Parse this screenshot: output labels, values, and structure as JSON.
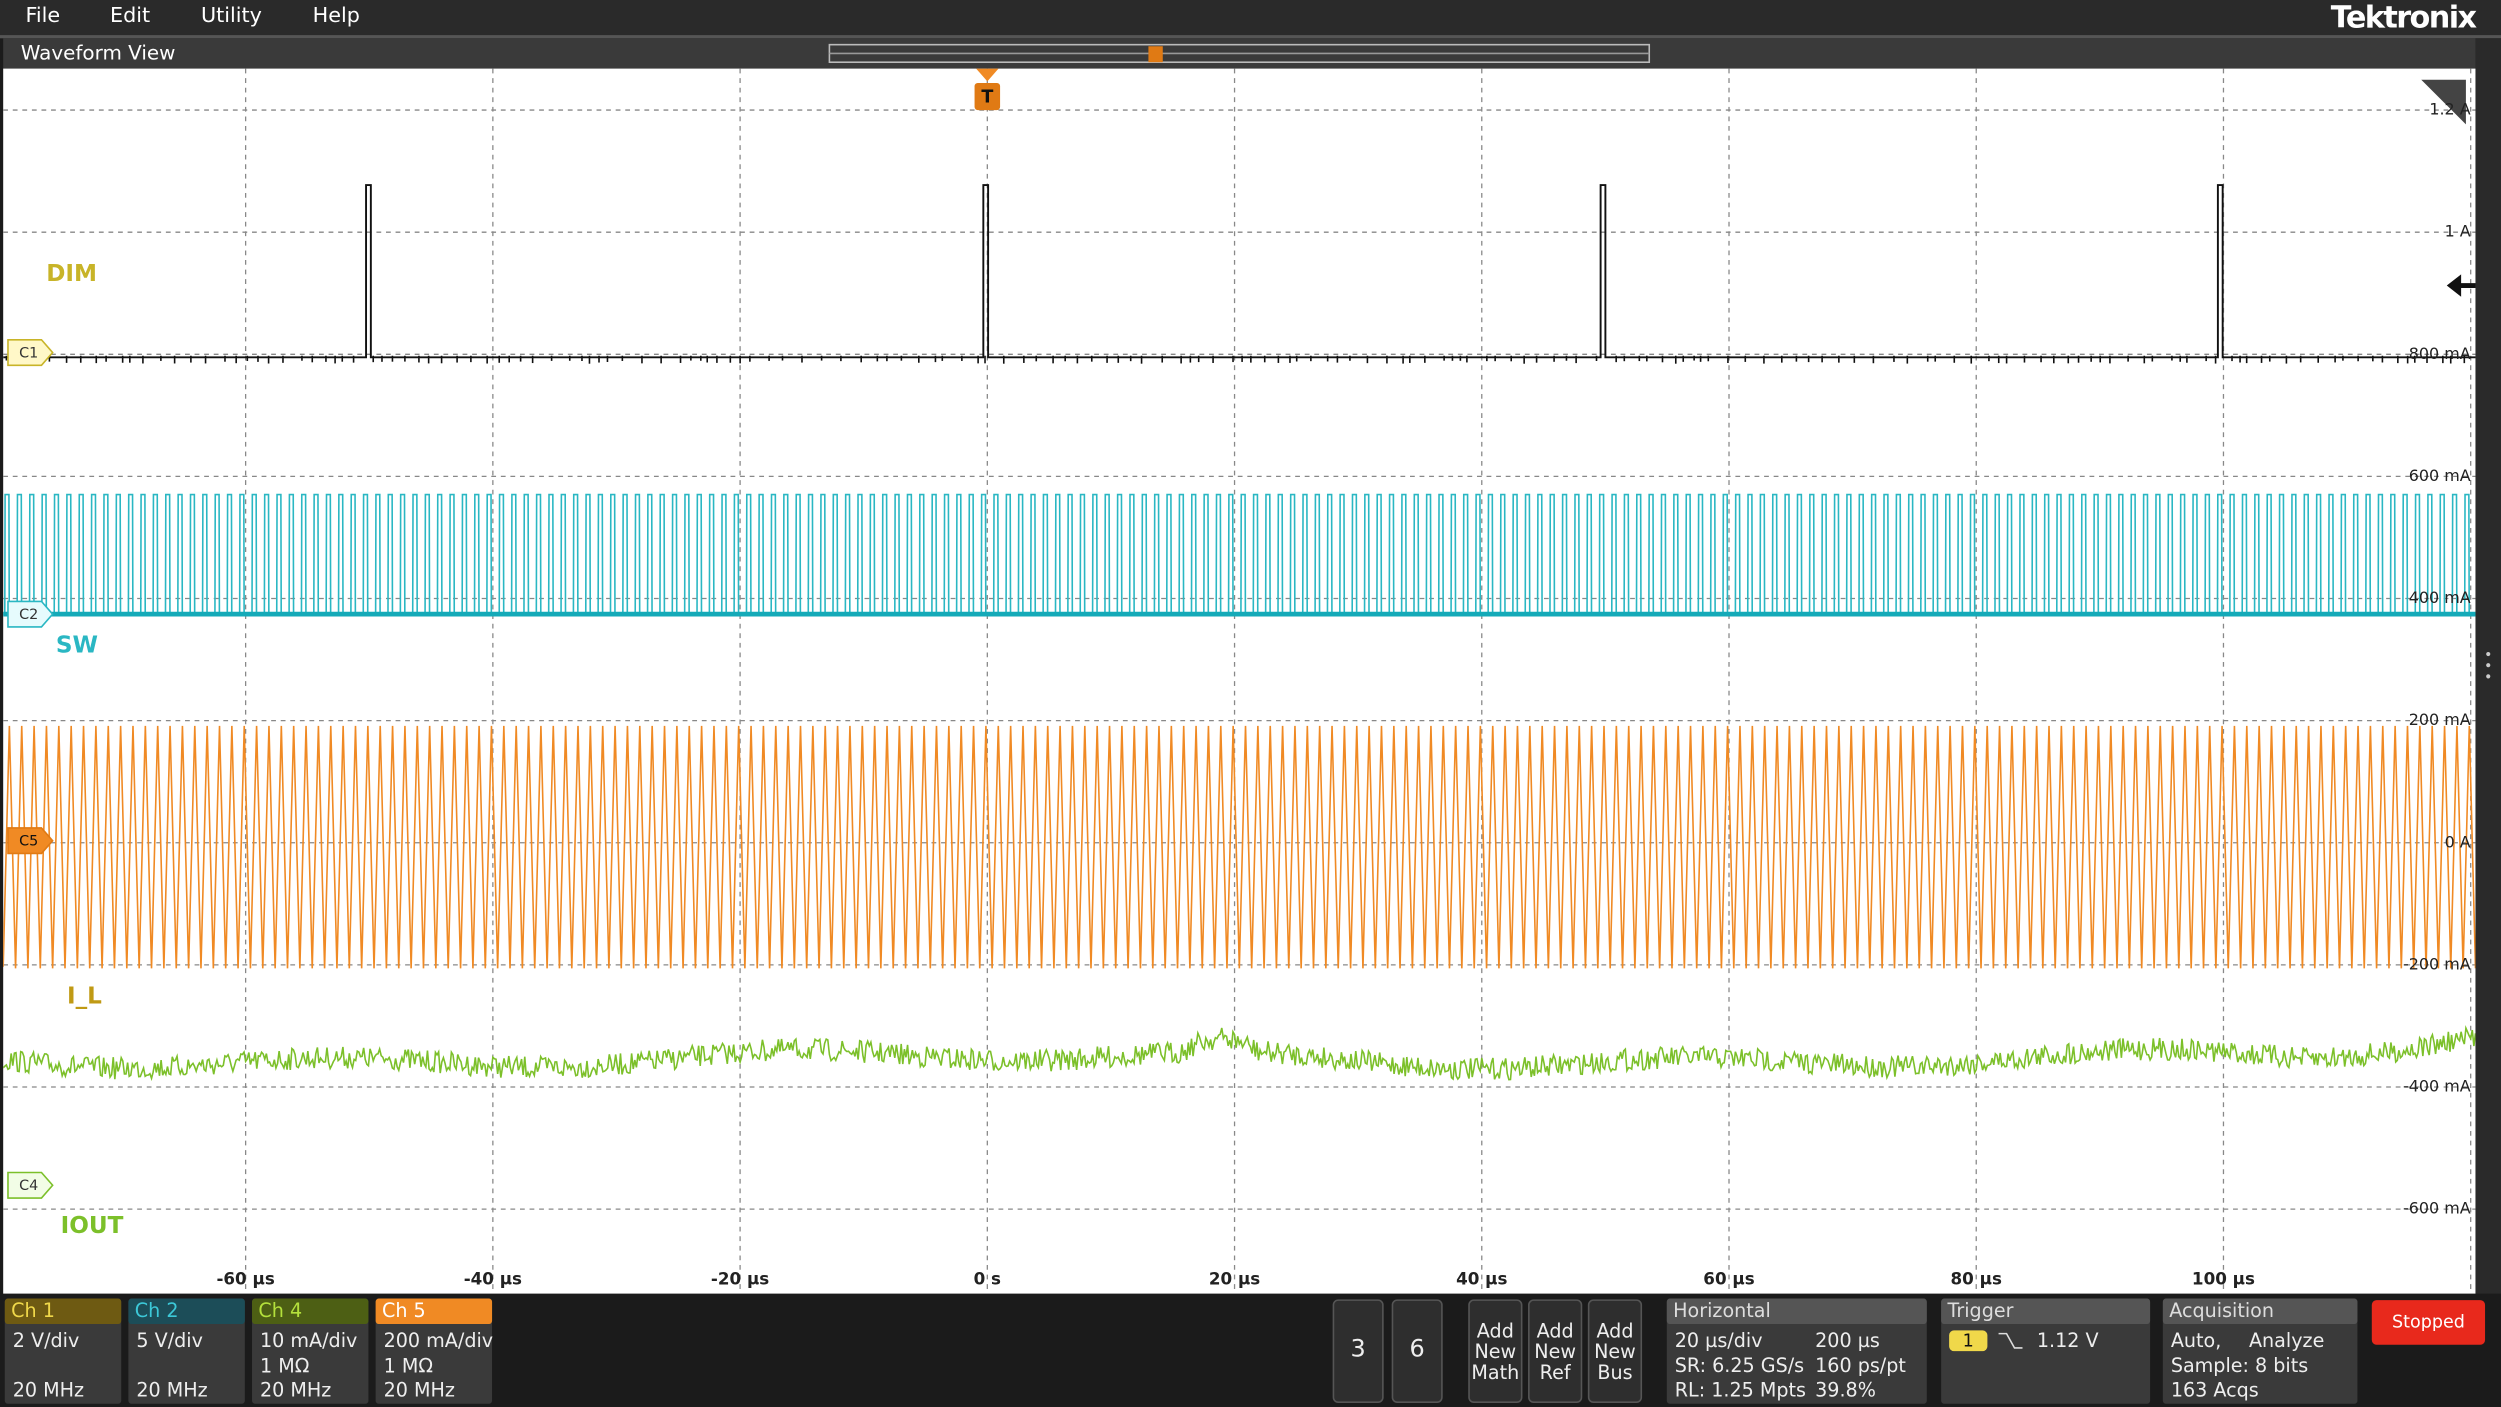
{
  "menu": [
    "File",
    "Edit",
    "Utility",
    "Help"
  ],
  "brand": "Tektronix",
  "waveform_view": {
    "title": "Waveform View",
    "trigger_marker": "T",
    "x_labels": [
      "-60 µs",
      "-40 µs",
      "-20 µs",
      "0 s",
      "20 µs",
      "40 µs",
      "60 µs",
      "80 µs",
      "100 µs"
    ],
    "y_labels": [
      "1.2 A",
      "1 A",
      "800 mA",
      "600 mA",
      "400 mA",
      "200 mA",
      "0 A",
      "-200 mA",
      "-400 mA",
      "-600 mA"
    ],
    "channels": [
      {
        "marker": "C1",
        "label": "DIM"
      },
      {
        "marker": "C2",
        "label": "SW"
      },
      {
        "marker": "C5",
        "label": "I_L"
      },
      {
        "marker": "C4",
        "label": "IOUT"
      }
    ]
  },
  "badges": [
    {
      "title": "Ch 1",
      "lines": [
        "2 V/div",
        "20 MHz"
      ]
    },
    {
      "title": "Ch 2",
      "lines": [
        "5 V/div",
        "20 MHz"
      ]
    },
    {
      "title": "Ch 4",
      "lines": [
        "10 mA/div",
        "1 MΩ",
        "20 MHz"
      ]
    },
    {
      "title": "Ch 5",
      "lines": [
        "200 mA/div",
        "1 MΩ",
        "20 MHz"
      ]
    }
  ],
  "number_buttons": [
    "3",
    "6"
  ],
  "add_buttons": [
    [
      "Add",
      "New",
      "Math"
    ],
    [
      "Add",
      "New",
      "Ref"
    ],
    [
      "Add",
      "New",
      "Bus"
    ]
  ],
  "horizontal": {
    "title": "Horizontal",
    "rows": [
      [
        "20 µs/div",
        "200 µs"
      ],
      [
        "SR: 6.25 GS/s",
        "160 ps/pt"
      ],
      [
        "RL: 1.25 Mpts",
        "39.8%"
      ]
    ]
  },
  "trigger": {
    "title": "Trigger",
    "source": "1",
    "level": "1.12 V"
  },
  "acquisition": {
    "title": "Acquisition",
    "rows": [
      [
        "Auto,",
        "Analyze"
      ],
      [
        "Sample: 8 bits"
      ],
      [
        "163 Acqs"
      ]
    ]
  },
  "status": "Stopped"
}
